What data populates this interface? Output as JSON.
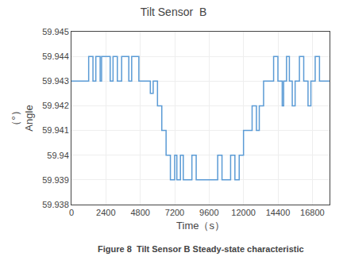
{
  "chart_data": {
    "type": "line",
    "title": "Tilt Sensor  B",
    "x_label": "Time（s）",
    "y_label": "（°）\nAngle",
    "caption": "Figure 8  Tilt Sensor B Steady-state characteristic",
    "color": "#5B9BD5",
    "grid": true,
    "xlim": [
      0,
      18000
    ],
    "ylim": [
      59.938,
      59.945
    ],
    "xticks": [
      0,
      2400,
      4800,
      7200,
      9600,
      12000,
      14400,
      16800
    ],
    "yticks": [
      59.938,
      59.939,
      59.94,
      59.941,
      59.942,
      59.943,
      59.944,
      59.945
    ],
    "x": [
      0,
      1200,
      1200,
      1500,
      1500,
      1700,
      1700,
      2000,
      2000,
      2100,
      2100,
      2700,
      2700,
      2900,
      2900,
      3200,
      3200,
      3500,
      3500,
      4000,
      4000,
      4200,
      4200,
      4700,
      4700,
      5500,
      5500,
      5700,
      5700,
      6000,
      6000,
      6300,
      6300,
      6600,
      6600,
      6900,
      6900,
      7200,
      7200,
      7350,
      7350,
      7600,
      7600,
      7800,
      7800,
      8400,
      8400,
      8700,
      8700,
      10200,
      10200,
      10500,
      10500,
      11100,
      11100,
      11400,
      11400,
      11700,
      11700,
      12000,
      12000,
      12600,
      12600,
      12900,
      12900,
      13100,
      13100,
      13400,
      13400,
      14100,
      14100,
      14400,
      14400,
      14700,
      14700,
      14800,
      14800,
      15000,
      15000,
      15200,
      15200,
      15400,
      15400,
      15600,
      15600,
      15900,
      15900,
      16200,
      16200,
      16500,
      16500,
      16700,
      16700,
      17000,
      17000,
      17300,
      17300,
      18000
    ],
    "values": [
      59.943,
      59.943,
      59.944,
      59.944,
      59.943,
      59.943,
      59.944,
      59.944,
      59.943,
      59.943,
      59.944,
      59.944,
      59.943,
      59.943,
      59.944,
      59.944,
      59.943,
      59.943,
      59.944,
      59.944,
      59.943,
      59.943,
      59.944,
      59.944,
      59.943,
      59.943,
      59.9425,
      59.9425,
      59.943,
      59.943,
      59.942,
      59.942,
      59.941,
      59.941,
      59.94,
      59.94,
      59.939,
      59.939,
      59.94,
      59.94,
      59.939,
      59.939,
      59.94,
      59.94,
      59.939,
      59.939,
      59.94,
      59.94,
      59.939,
      59.939,
      59.94,
      59.94,
      59.939,
      59.939,
      59.94,
      59.94,
      59.939,
      59.939,
      59.94,
      59.94,
      59.941,
      59.941,
      59.942,
      59.942,
      59.941,
      59.941,
      59.942,
      59.942,
      59.943,
      59.943,
      59.944,
      59.944,
      59.943,
      59.943,
      59.942,
      59.942,
      59.943,
      59.943,
      59.944,
      59.944,
      59.943,
      59.943,
      59.942,
      59.942,
      59.943,
      59.943,
      59.944,
      59.944,
      59.943,
      59.943,
      59.942,
      59.942,
      59.943,
      59.943,
      59.944,
      59.944,
      59.943,
      59.943
    ]
  }
}
